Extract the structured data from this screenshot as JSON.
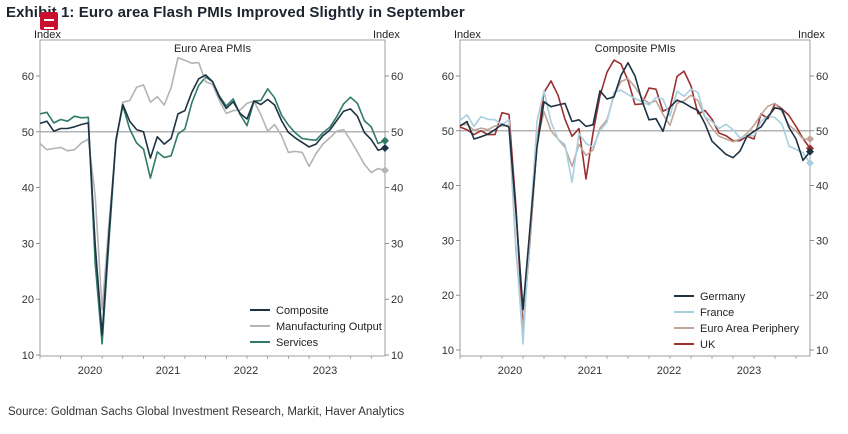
{
  "title": "Exhibit 1: Euro area Flash PMIs Improved Slightly in September",
  "source": "Source: Goldman Sachs Global Investment Research, Markit, Haver Analytics",
  "colors": {
    "composite": "#1d3344",
    "manufacturing": "#b4b4b4",
    "services": "#2f7a68",
    "germany": "#1d3344",
    "france": "#a9cfe0",
    "periphery": "#c0a69a",
    "uk": "#9a3030",
    "reference_line": "#9a9a9a"
  },
  "chart_data": [
    {
      "type": "line",
      "title": "Euro Area PMIs",
      "ylabel_left": "Index",
      "ylabel_right": "Index",
      "ylim": [
        10,
        65
      ],
      "y_ticks": [
        10,
        20,
        30,
        40,
        50,
        60
      ],
      "x_ticks": [
        "2020",
        "2021",
        "2022",
        "2023"
      ],
      "xlim": [
        "2019-07",
        "2023-09"
      ],
      "reference_line": 50,
      "legend_position": "bottom-right",
      "series": [
        {
          "name": "Composite",
          "color_key": "composite",
          "x": [
            "2019-07",
            "2019-08",
            "2019-09",
            "2019-10",
            "2019-11",
            "2019-12",
            "2020-01",
            "2020-02",
            "2020-03",
            "2020-04",
            "2020-05",
            "2020-06",
            "2020-07",
            "2020-08",
            "2020-09",
            "2020-10",
            "2020-11",
            "2020-12",
            "2021-01",
            "2021-02",
            "2021-03",
            "2021-04",
            "2021-05",
            "2021-06",
            "2021-07",
            "2021-08",
            "2021-09",
            "2021-10",
            "2021-11",
            "2021-12",
            "2022-01",
            "2022-02",
            "2022-03",
            "2022-04",
            "2022-05",
            "2022-06",
            "2022-07",
            "2022-08",
            "2022-09",
            "2022-10",
            "2022-11",
            "2022-12",
            "2023-01",
            "2023-02",
            "2023-03",
            "2023-04",
            "2023-05",
            "2023-06",
            "2023-07",
            "2023-08",
            "2023-09"
          ],
          "values": [
            51.5,
            51.9,
            50.1,
            50.6,
            50.6,
            50.9,
            51.3,
            51.6,
            29.7,
            13.6,
            31.9,
            48.5,
            54.9,
            51.9,
            50.4,
            50.0,
            45.3,
            49.1,
            47.8,
            48.8,
            53.2,
            53.8,
            57.1,
            59.5,
            60.2,
            59.0,
            56.2,
            54.2,
            55.4,
            53.3,
            52.3,
            55.5,
            54.9,
            55.8,
            54.8,
            52.0,
            49.9,
            48.9,
            48.1,
            47.3,
            47.8,
            49.3,
            50.3,
            52.0,
            53.7,
            54.1,
            52.8,
            49.9,
            48.6,
            46.7,
            47.1
          ]
        },
        {
          "name": "Manufacturing Output",
          "color_key": "manufacturing",
          "x": [
            "2019-07",
            "2019-08",
            "2019-09",
            "2019-10",
            "2019-11",
            "2019-12",
            "2020-01",
            "2020-02",
            "2020-03",
            "2020-04",
            "2020-05",
            "2020-06",
            "2020-07",
            "2020-08",
            "2020-09",
            "2020-10",
            "2020-11",
            "2020-12",
            "2021-01",
            "2021-02",
            "2021-03",
            "2021-04",
            "2021-05",
            "2021-06",
            "2021-07",
            "2021-08",
            "2021-09",
            "2021-10",
            "2021-11",
            "2021-12",
            "2022-01",
            "2022-02",
            "2022-03",
            "2022-04",
            "2022-05",
            "2022-06",
            "2022-07",
            "2022-08",
            "2022-09",
            "2022-10",
            "2022-11",
            "2022-12",
            "2023-01",
            "2023-02",
            "2023-03",
            "2023-04",
            "2023-05",
            "2023-06",
            "2023-07",
            "2023-08",
            "2023-09"
          ],
          "values": [
            47.9,
            46.8,
            47.0,
            47.2,
            46.6,
            46.8,
            48.0,
            48.7,
            38.5,
            18.1,
            33.6,
            47.8,
            55.3,
            55.6,
            58.0,
            58.4,
            55.3,
            56.3,
            54.8,
            57.9,
            63.3,
            62.8,
            62.3,
            62.4,
            59.0,
            58.5,
            55.6,
            53.3,
            53.8,
            53.9,
            55.1,
            55.5,
            53.1,
            50.1,
            51.3,
            49.3,
            46.3,
            46.5,
            46.3,
            43.8,
            46.1,
            47.8,
            48.9,
            50.1,
            50.4,
            48.5,
            46.4,
            44.2,
            42.7,
            43.4,
            43.1
          ]
        },
        {
          "name": "Services",
          "color_key": "services",
          "x": [
            "2019-07",
            "2019-08",
            "2019-09",
            "2019-10",
            "2019-11",
            "2019-12",
            "2020-01",
            "2020-02",
            "2020-03",
            "2020-04",
            "2020-05",
            "2020-06",
            "2020-07",
            "2020-08",
            "2020-09",
            "2020-10",
            "2020-11",
            "2020-12",
            "2021-01",
            "2021-02",
            "2021-03",
            "2021-04",
            "2021-05",
            "2021-06",
            "2021-07",
            "2021-08",
            "2021-09",
            "2021-10",
            "2021-11",
            "2021-12",
            "2022-01",
            "2022-02",
            "2022-03",
            "2022-04",
            "2022-05",
            "2022-06",
            "2022-07",
            "2022-08",
            "2022-09",
            "2022-10",
            "2022-11",
            "2022-12",
            "2023-01",
            "2023-02",
            "2023-03",
            "2023-04",
            "2023-05",
            "2023-06",
            "2023-07",
            "2023-08",
            "2023-09"
          ],
          "values": [
            53.2,
            53.5,
            51.6,
            52.2,
            51.9,
            52.8,
            52.5,
            52.6,
            26.4,
            12.0,
            30.5,
            48.3,
            54.7,
            50.5,
            48.0,
            46.9,
            41.7,
            46.4,
            45.4,
            45.7,
            49.6,
            50.5,
            55.2,
            58.3,
            59.8,
            59.0,
            56.4,
            54.6,
            55.9,
            53.1,
            51.1,
            55.5,
            55.6,
            57.7,
            56.1,
            53.0,
            51.2,
            49.8,
            48.8,
            48.6,
            48.5,
            49.8,
            50.8,
            52.7,
            55.0,
            56.2,
            55.1,
            52.0,
            50.9,
            47.9,
            48.4
          ]
        }
      ]
    },
    {
      "type": "line",
      "title": "Composite PMIs",
      "ylabel_left": "Index",
      "ylabel_right": "Index",
      "ylim": [
        8,
        66
      ],
      "y_ticks": [
        10,
        20,
        30,
        40,
        50,
        60
      ],
      "x_ticks": [
        "2020",
        "2021",
        "2022",
        "2023"
      ],
      "xlim": [
        "2019-07",
        "2023-09"
      ],
      "reference_line": 50,
      "legend_position": "bottom-right",
      "series": [
        {
          "name": "Germany",
          "color_key": "germany",
          "x": [
            "2019-07",
            "2019-08",
            "2019-09",
            "2019-10",
            "2019-11",
            "2019-12",
            "2020-01",
            "2020-02",
            "2020-03",
            "2020-04",
            "2020-05",
            "2020-06",
            "2020-07",
            "2020-08",
            "2020-09",
            "2020-10",
            "2020-11",
            "2020-12",
            "2021-01",
            "2021-02",
            "2021-03",
            "2021-04",
            "2021-05",
            "2021-06",
            "2021-07",
            "2021-08",
            "2021-09",
            "2021-10",
            "2021-11",
            "2021-12",
            "2022-01",
            "2022-02",
            "2022-03",
            "2022-04",
            "2022-05",
            "2022-06",
            "2022-07",
            "2022-08",
            "2022-09",
            "2022-10",
            "2022-11",
            "2022-12",
            "2023-01",
            "2023-02",
            "2023-03",
            "2023-04",
            "2023-05",
            "2023-06",
            "2023-07",
            "2023-08",
            "2023-09"
          ],
          "values": [
            50.9,
            51.7,
            48.5,
            48.9,
            49.4,
            50.2,
            51.2,
            50.7,
            35.0,
            17.4,
            32.3,
            47.0,
            55.3,
            54.4,
            54.7,
            55.0,
            51.7,
            52.0,
            50.8,
            51.1,
            57.3,
            55.8,
            56.2,
            60.1,
            62.4,
            60.0,
            55.5,
            52.0,
            52.2,
            49.9,
            54.3,
            55.6,
            55.1,
            54.3,
            53.7,
            51.3,
            48.1,
            46.9,
            45.7,
            45.1,
            46.3,
            49.0,
            49.9,
            50.7,
            52.6,
            54.2,
            53.9,
            50.6,
            48.5,
            44.6,
            46.2
          ]
        },
        {
          "name": "France",
          "color_key": "france",
          "x": [
            "2019-07",
            "2019-08",
            "2019-09",
            "2019-10",
            "2019-11",
            "2019-12",
            "2020-01",
            "2020-02",
            "2020-03",
            "2020-04",
            "2020-05",
            "2020-06",
            "2020-07",
            "2020-08",
            "2020-09",
            "2020-10",
            "2020-11",
            "2020-12",
            "2021-01",
            "2021-02",
            "2021-03",
            "2021-04",
            "2021-05",
            "2021-06",
            "2021-07",
            "2021-08",
            "2021-09",
            "2021-10",
            "2021-11",
            "2021-12",
            "2022-01",
            "2022-02",
            "2022-03",
            "2022-04",
            "2022-05",
            "2022-06",
            "2022-07",
            "2022-08",
            "2022-09",
            "2022-10",
            "2022-11",
            "2022-12",
            "2023-01",
            "2023-02",
            "2023-03",
            "2023-04",
            "2023-05",
            "2023-06",
            "2023-07",
            "2023-08",
            "2023-09"
          ],
          "values": [
            51.9,
            52.9,
            50.8,
            52.6,
            52.1,
            52.0,
            51.1,
            52.0,
            28.9,
            11.1,
            32.1,
            51.7,
            57.3,
            51.6,
            48.5,
            47.5,
            40.6,
            49.5,
            47.7,
            47.0,
            50.0,
            51.6,
            57.0,
            57.4,
            56.6,
            55.9,
            55.3,
            54.7,
            56.1,
            55.8,
            52.7,
            57.2,
            56.3,
            57.6,
            57.0,
            52.5,
            51.7,
            50.4,
            51.2,
            50.2,
            48.7,
            49.1,
            49.1,
            51.7,
            52.7,
            52.4,
            51.2,
            47.2,
            46.6,
            46.0,
            44.1
          ]
        },
        {
          "name": "Euro Area Periphery",
          "color_key": "periphery",
          "x": [
            "2019-07",
            "2019-08",
            "2019-09",
            "2019-10",
            "2019-11",
            "2019-12",
            "2020-01",
            "2020-02",
            "2020-03",
            "2020-04",
            "2020-05",
            "2020-06",
            "2020-07",
            "2020-08",
            "2020-09",
            "2020-10",
            "2020-11",
            "2020-12",
            "2021-01",
            "2021-02",
            "2021-03",
            "2021-04",
            "2021-05",
            "2021-06",
            "2021-07",
            "2021-08",
            "2021-09",
            "2021-10",
            "2021-11",
            "2021-12",
            "2022-01",
            "2022-02",
            "2022-03",
            "2022-04",
            "2022-05",
            "2022-06",
            "2022-07",
            "2022-08",
            "2022-09",
            "2022-10",
            "2022-11",
            "2022-12",
            "2023-01",
            "2023-02",
            "2023-03",
            "2023-04",
            "2023-05",
            "2023-06",
            "2023-07",
            "2023-08",
            "2023-09"
          ],
          "values": [
            51.0,
            51.2,
            50.1,
            50.5,
            50.2,
            50.9,
            50.9,
            51.0,
            28.0,
            13.5,
            30.5,
            48.0,
            53.5,
            50.0,
            48.5,
            47.0,
            43.5,
            47.5,
            45.5,
            46.5,
            50.5,
            52.0,
            56.5,
            59.0,
            59.5,
            58.0,
            56.0,
            55.0,
            55.5,
            53.0,
            51.0,
            55.0,
            55.5,
            56.5,
            55.5,
            52.5,
            50.5,
            49.0,
            48.5,
            48.0,
            48.5,
            49.5,
            51.0,
            53.0,
            54.5,
            55.0,
            53.5,
            51.0,
            50.0,
            48.5,
            48.5
          ]
        },
        {
          "name": "UK",
          "color_key": "uk",
          "x": [
            "2019-07",
            "2019-08",
            "2019-09",
            "2019-10",
            "2019-11",
            "2019-12",
            "2020-01",
            "2020-02",
            "2020-03",
            "2020-04",
            "2020-05",
            "2020-06",
            "2020-07",
            "2020-08",
            "2020-09",
            "2020-10",
            "2020-11",
            "2020-12",
            "2021-01",
            "2021-02",
            "2021-03",
            "2021-04",
            "2021-05",
            "2021-06",
            "2021-07",
            "2021-08",
            "2021-09",
            "2021-10",
            "2021-11",
            "2021-12",
            "2022-01",
            "2022-02",
            "2022-03",
            "2022-04",
            "2022-05",
            "2022-06",
            "2022-07",
            "2022-08",
            "2022-09",
            "2022-10",
            "2022-11",
            "2022-12",
            "2023-01",
            "2023-02",
            "2023-03",
            "2023-04",
            "2023-05",
            "2023-06",
            "2023-07",
            "2023-08",
            "2023-09"
          ],
          "values": [
            50.7,
            50.2,
            49.3,
            50.0,
            49.3,
            49.3,
            53.3,
            53.0,
            36.0,
            13.8,
            30.0,
            47.7,
            57.0,
            59.1,
            56.5,
            52.1,
            49.0,
            50.4,
            41.2,
            49.6,
            56.4,
            60.7,
            62.9,
            62.2,
            59.2,
            54.8,
            54.9,
            57.8,
            57.6,
            53.6,
            54.2,
            59.9,
            60.9,
            58.2,
            53.1,
            53.7,
            52.1,
            49.6,
            49.1,
            48.2,
            48.2,
            49.0,
            48.5,
            53.1,
            52.2,
            54.9,
            54.0,
            52.8,
            50.8,
            48.6,
            46.8
          ]
        }
      ]
    }
  ]
}
